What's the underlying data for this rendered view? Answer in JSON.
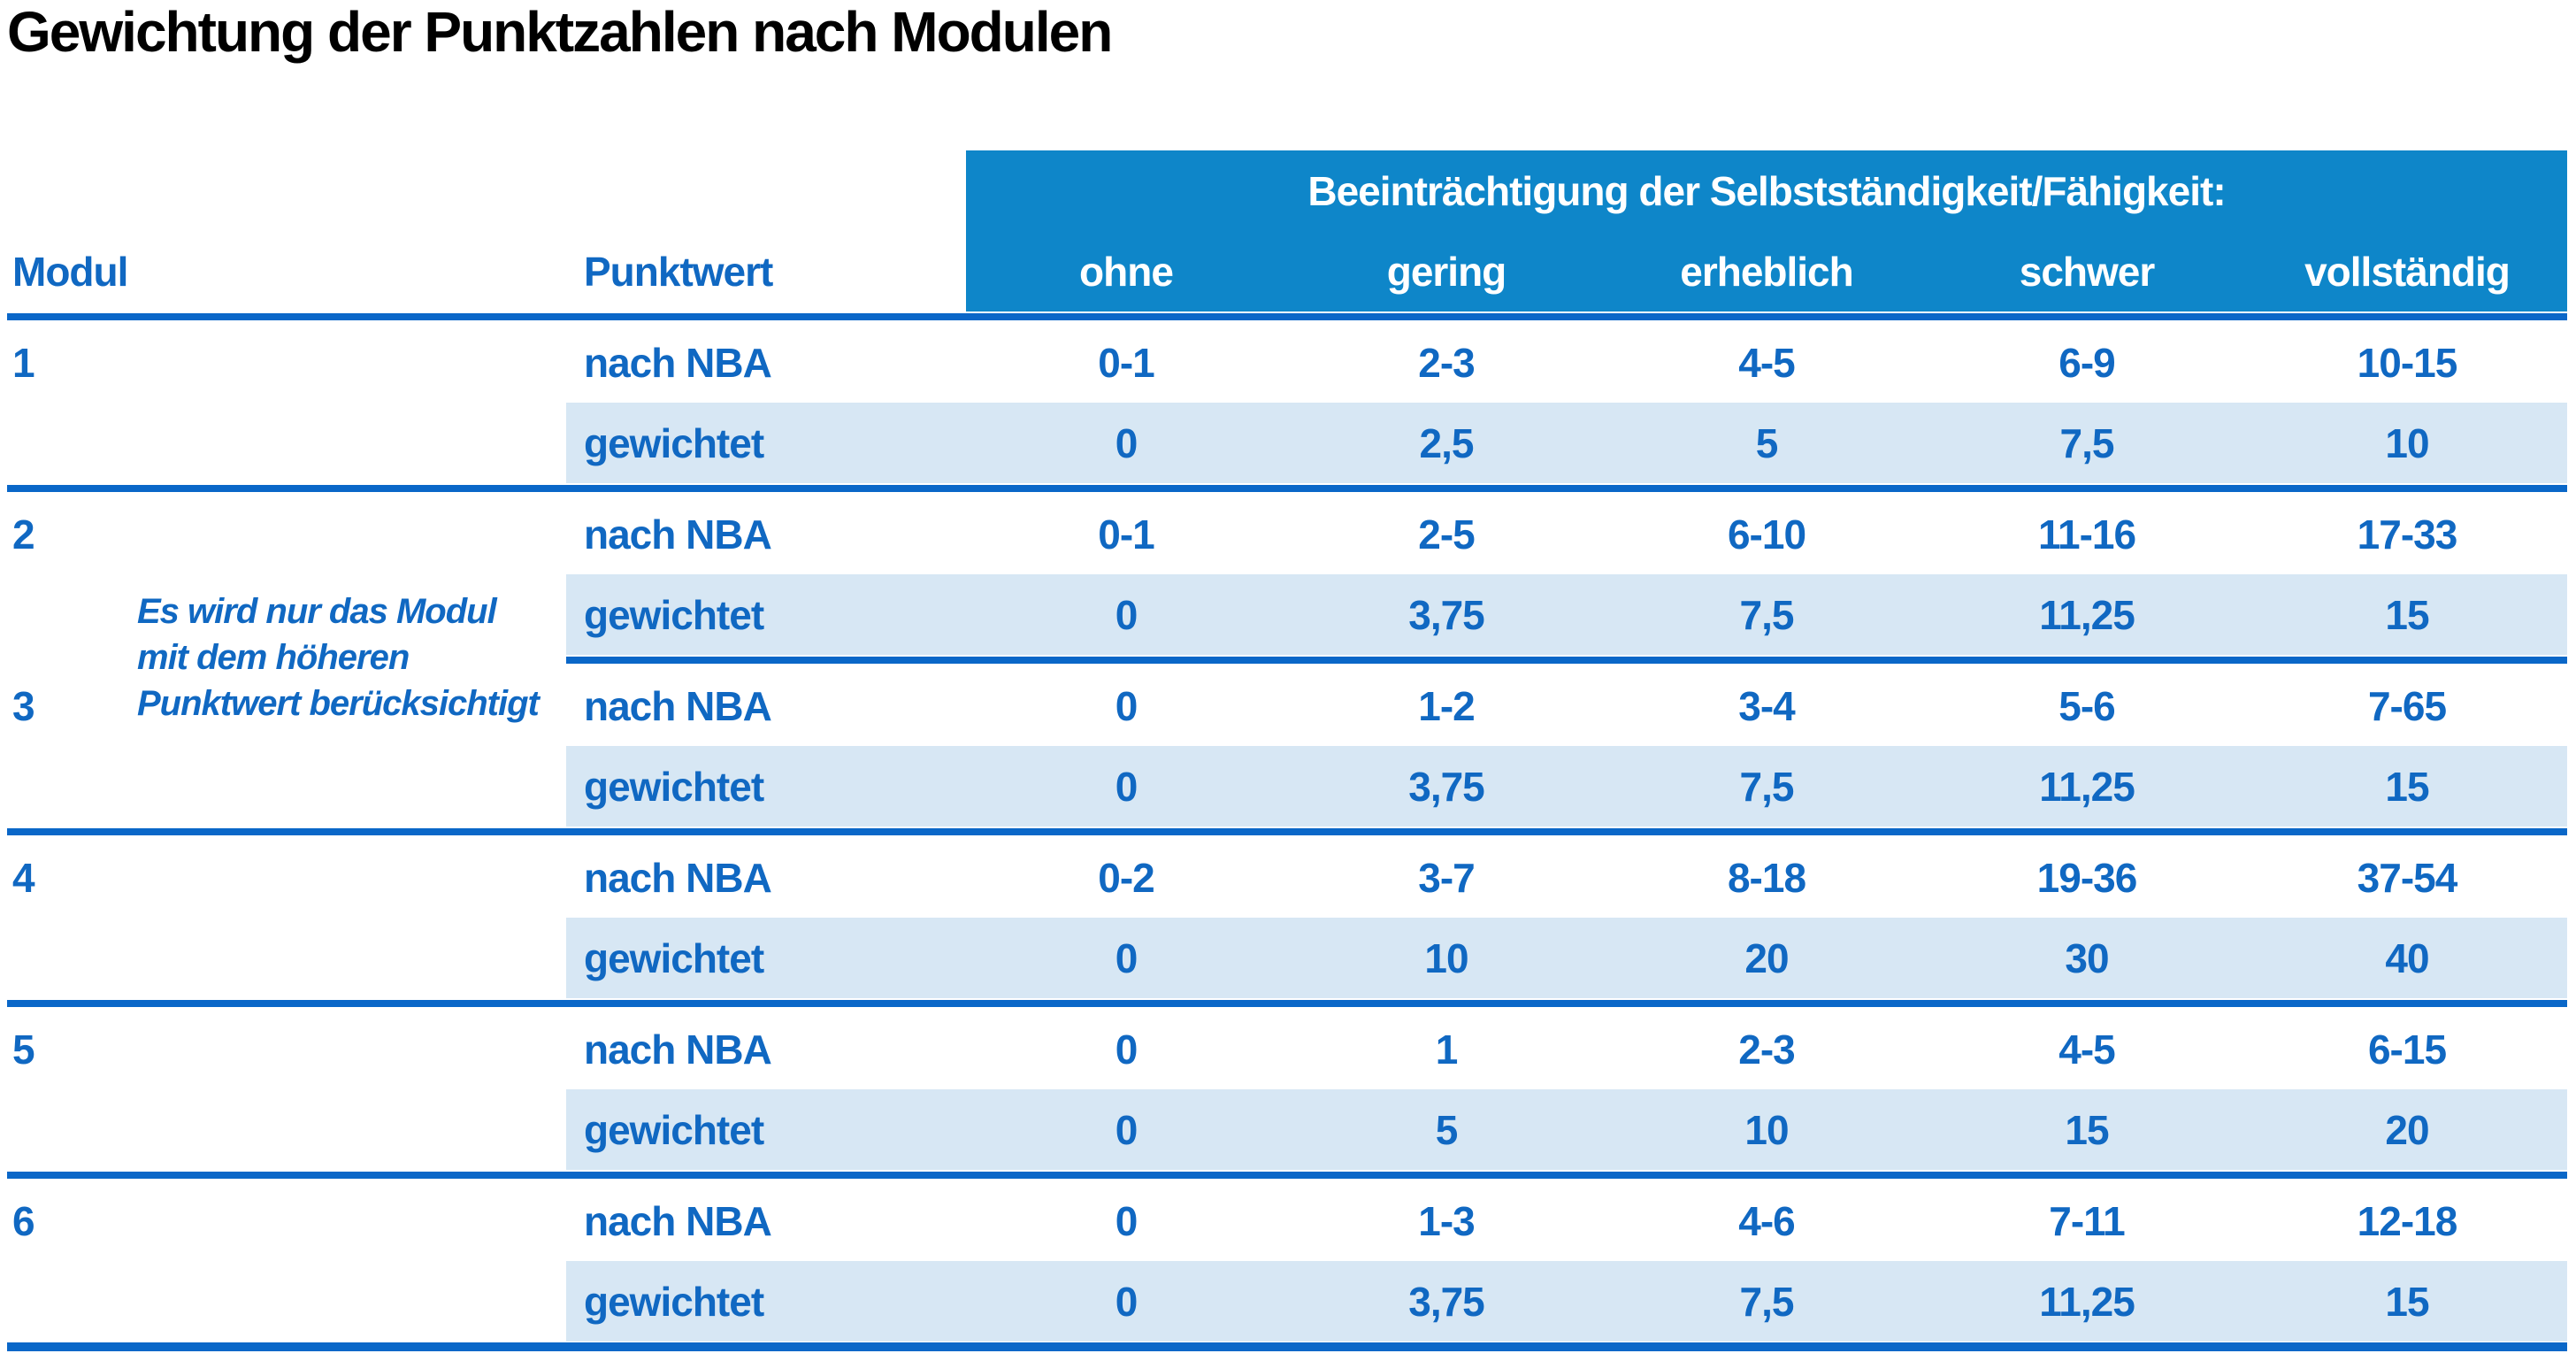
{
  "title": "Gewichtung der Punktzahlen nach Modulen",
  "colors": {
    "banner_blue": "#0E86C9",
    "bar_blue": "#0A67C8",
    "text_blue": "#1068C2",
    "row_light_blue": "#D7E7F4"
  },
  "table": {
    "banner": "Beeinträchtigung der Selbstständigkeit/Fähigkeit:",
    "col_modul": "Modul",
    "col_punktwert": "Punktwert",
    "severities": [
      "ohne",
      "gering",
      "erheblich",
      "schwer",
      "vollständig"
    ],
    "row_label_nba": "nach NBA",
    "row_label_weighted": "gewichtet",
    "note_lines": [
      "Es wird nur das Modul",
      "mit dem höheren",
      "Punktwert berücksichtigt"
    ],
    "modules": [
      {
        "id": "1",
        "nba": [
          "0-1",
          "2-3",
          "4-5",
          "6-9",
          "10-15"
        ],
        "weighted": [
          "0",
          "2,5",
          "5",
          "7,5",
          "10"
        ]
      },
      {
        "id": "2",
        "nba": [
          "0-1",
          "2-5",
          "6-10",
          "11-16",
          "17-33"
        ],
        "weighted": [
          "0",
          "3,75",
          "7,5",
          "11,25",
          "15"
        ]
      },
      {
        "id": "3",
        "nba": [
          "0",
          "1-2",
          "3-4",
          "5-6",
          "7-65"
        ],
        "weighted": [
          "0",
          "3,75",
          "7,5",
          "11,25",
          "15"
        ]
      },
      {
        "id": "4",
        "nba": [
          "0-2",
          "3-7",
          "8-18",
          "19-36",
          "37-54"
        ],
        "weighted": [
          "0",
          "10",
          "20",
          "30",
          "40"
        ]
      },
      {
        "id": "5",
        "nba": [
          "0",
          "1",
          "2-3",
          "4-5",
          "6-15"
        ],
        "weighted": [
          "0",
          "5",
          "10",
          "15",
          "20"
        ]
      },
      {
        "id": "6",
        "nba": [
          "0",
          "1-3",
          "4-6",
          "7-11",
          "12-18"
        ],
        "weighted": [
          "0",
          "3,75",
          "7,5",
          "11,25",
          "15"
        ]
      }
    ]
  }
}
